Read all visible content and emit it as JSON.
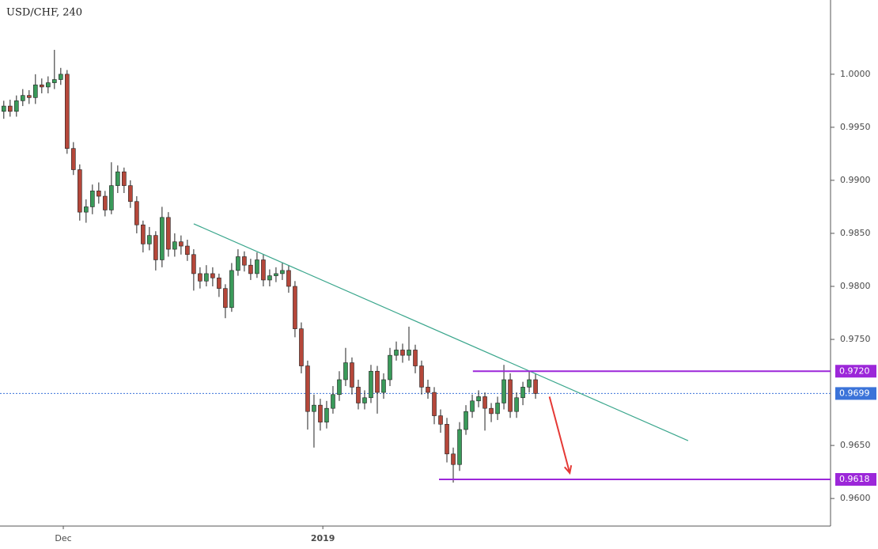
{
  "chart_data": {
    "type": "candlestick",
    "title": "USD/CHF, 240",
    "up_color": "#3a9a5a",
    "down_color": "#b5473a",
    "xlim": [
      -0.6,
      130.6
    ],
    "ylim": [
      0.9574,
      1.007
    ],
    "xticks": [
      {
        "value": 9.4,
        "label": "Dec"
      },
      {
        "value": 50.4,
        "label": "2019"
      }
    ],
    "yticks": [
      {
        "value": 0.96,
        "label": "0.9600"
      },
      {
        "value": 0.965,
        "label": "0.9650"
      },
      {
        "value": 0.975,
        "label": "0.9750"
      },
      {
        "value": 0.98,
        "label": "0.9800"
      },
      {
        "value": 0.985,
        "label": "0.9850"
      },
      {
        "value": 0.99,
        "label": "0.9900"
      },
      {
        "value": 0.995,
        "label": "0.9950"
      },
      {
        "value": 1,
        "label": "1.0000"
      }
    ],
    "candles": {
      "open": [
        0.9965,
        0.997,
        0.9965,
        0.9975,
        0.998,
        0.9978,
        0.999,
        0.9988,
        0.9992,
        0.9995,
        1,
        0.993,
        0.991,
        0.987,
        0.9875,
        0.989,
        0.9885,
        0.9872,
        0.9895,
        0.9908,
        0.9895,
        0.988,
        0.9858,
        0.984,
        0.9848,
        0.9825,
        0.9865,
        0.9835,
        0.9842,
        0.9838,
        0.983,
        0.9812,
        0.9805,
        0.9812,
        0.9808,
        0.9798,
        0.978,
        0.9815,
        0.9828,
        0.982,
        0.9812,
        0.9825,
        0.9806,
        0.981,
        0.9812,
        0.9815,
        0.98,
        0.976,
        0.9725,
        0.9682,
        0.9688,
        0.9672,
        0.9685,
        0.9698,
        0.9712,
        0.9728,
        0.9705,
        0.969,
        0.9695,
        0.972,
        0.97,
        0.9712,
        0.9735,
        0.974,
        0.9735,
        0.974,
        0.9725,
        0.9705,
        0.97,
        0.9678,
        0.967,
        0.9642,
        0.9632,
        0.9665,
        0.9682,
        0.9692,
        0.9696,
        0.9685,
        0.968,
        0.969,
        0.9712,
        0.9682,
        0.9695,
        0.9705,
        0.9712
      ],
      "high": [
        0.9975,
        0.9976,
        0.998,
        0.9986,
        0.9985,
        1,
        0.9996,
        0.9998,
        1.0023,
        1.0006,
        1.0004,
        0.9936,
        0.9915,
        0.9882,
        0.9896,
        0.9898,
        0.989,
        0.9917,
        0.9914,
        0.9912,
        0.99,
        0.9885,
        0.9862,
        0.9856,
        0.9852,
        0.9875,
        0.987,
        0.985,
        0.9848,
        0.9844,
        0.9835,
        0.9818,
        0.982,
        0.9818,
        0.9812,
        0.9802,
        0.9822,
        0.9835,
        0.9833,
        0.9826,
        0.9832,
        0.983,
        0.9816,
        0.9818,
        0.9822,
        0.982,
        0.9805,
        0.9766,
        0.973,
        0.9698,
        0.9694,
        0.9692,
        0.9706,
        0.972,
        0.9742,
        0.9733,
        0.9712,
        0.9702,
        0.9726,
        0.9725,
        0.9718,
        0.9742,
        0.9748,
        0.9746,
        0.9762,
        0.9745,
        0.973,
        0.9712,
        0.9705,
        0.9684,
        0.9676,
        0.9648,
        0.9672,
        0.9688,
        0.9698,
        0.9702,
        0.97,
        0.969,
        0.9696,
        0.9726,
        0.9718,
        0.97,
        0.971,
        0.972,
        0.9718
      ],
      "low": [
        0.9958,
        0.996,
        0.996,
        0.997,
        0.9972,
        0.9972,
        0.9982,
        0.9982,
        0.9986,
        0.999,
        0.9925,
        0.9905,
        0.9862,
        0.986,
        0.9868,
        0.9878,
        0.9866,
        0.9868,
        0.9888,
        0.9888,
        0.9874,
        0.985,
        0.9832,
        0.9834,
        0.9815,
        0.9818,
        0.9828,
        0.9828,
        0.983,
        0.9824,
        0.9796,
        0.9798,
        0.98,
        0.98,
        0.979,
        0.977,
        0.9776,
        0.981,
        0.9814,
        0.9806,
        0.9808,
        0.98,
        0.98,
        0.9804,
        0.9806,
        0.9794,
        0.9752,
        0.9718,
        0.9665,
        0.9648,
        0.9664,
        0.9666,
        0.968,
        0.9692,
        0.9706,
        0.9698,
        0.9684,
        0.9684,
        0.969,
        0.968,
        0.9694,
        0.9706,
        0.973,
        0.9728,
        0.973,
        0.9718,
        0.9698,
        0.9694,
        0.967,
        0.9662,
        0.9634,
        0.9615,
        0.9626,
        0.966,
        0.9676,
        0.9686,
        0.9664,
        0.9672,
        0.9674,
        0.9684,
        0.9676,
        0.9676,
        0.9688,
        0.97,
        0.9694
      ],
      "close": [
        0.997,
        0.9965,
        0.9975,
        0.998,
        0.9978,
        0.999,
        0.9988,
        0.9992,
        0.9995,
        1,
        0.993,
        0.991,
        0.987,
        0.9875,
        0.989,
        0.9885,
        0.9872,
        0.9895,
        0.9908,
        0.9895,
        0.988,
        0.9858,
        0.984,
        0.9848,
        0.9825,
        0.9865,
        0.9835,
        0.9842,
        0.9838,
        0.983,
        0.9812,
        0.9805,
        0.9812,
        0.9808,
        0.9798,
        0.978,
        0.9815,
        0.9828,
        0.982,
        0.9812,
        0.9825,
        0.9806,
        0.981,
        0.9812,
        0.9815,
        0.98,
        0.976,
        0.9725,
        0.9682,
        0.9688,
        0.9672,
        0.9685,
        0.9698,
        0.9712,
        0.9728,
        0.9705,
        0.969,
        0.9695,
        0.972,
        0.97,
        0.9712,
        0.9735,
        0.974,
        0.9735,
        0.974,
        0.9725,
        0.9705,
        0.97,
        0.9678,
        0.967,
        0.9642,
        0.9632,
        0.9665,
        0.9682,
        0.9692,
        0.9696,
        0.9685,
        0.968,
        0.969,
        0.9712,
        0.9682,
        0.9695,
        0.9705,
        0.9712,
        0.9699
      ]
    },
    "trendline": {
      "x": [
        30,
        108.1
      ],
      "y": [
        0.9859,
        0.96545
      ],
      "color": "#3aa68c"
    },
    "levels": [
      {
        "value": 0.972,
        "label": "0.9720",
        "x_start": 74.1,
        "color": "#9c27d9"
      },
      {
        "value": 0.9618,
        "label": "0.9618",
        "x_start": 68.75,
        "color": "#9c27d9"
      }
    ],
    "last_price": {
      "value": 0.9699,
      "label": "0.9699",
      "color": "#3b73d9"
    },
    "arrow": {
      "x": [
        86.2,
        89.4
      ],
      "y": [
        0.9696,
        0.9624
      ],
      "color": "#e53935"
    }
  }
}
